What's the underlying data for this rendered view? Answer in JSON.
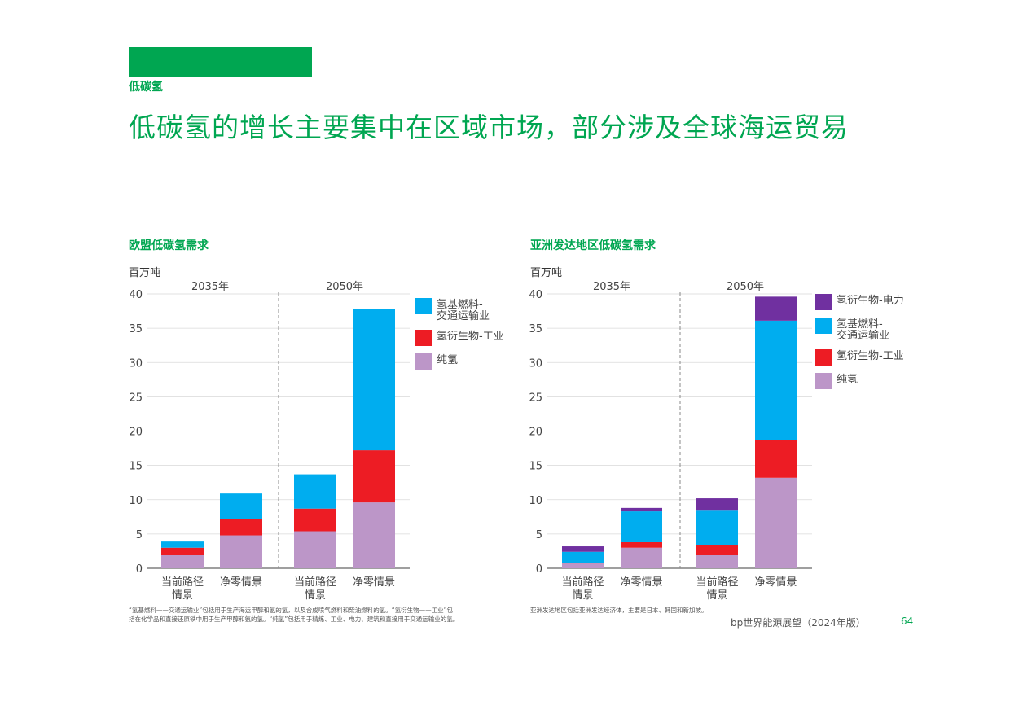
{
  "section_label": "低碳氢",
  "headline": "低碳氢的增长主要集中在区域市场，部分涉及全球海运贸易",
  "footer": {
    "brand": "bp世界能源展望（2024年版）",
    "page": "64"
  },
  "colors": {
    "accent": "#00a651",
    "pure_h2": "#bc96c8",
    "industry": "#ed1c24",
    "transport": "#00adef",
    "power": "#7030a0"
  },
  "chart_data": [
    {
      "type": "bar",
      "stacked": true,
      "title": "欧盟低碳氢需求",
      "ylabel": "百万吨",
      "ylim": [
        0,
        40
      ],
      "yticks": [
        0,
        5,
        10,
        15,
        20,
        25,
        30,
        35,
        40
      ],
      "groups": [
        "2035年",
        "2050年"
      ],
      "categories": [
        "当前路径\n情景",
        "净零情景",
        "当前路径\n情景",
        "净零情景"
      ],
      "series": [
        {
          "name": "纯氢",
          "color": "#bc96c8",
          "values": [
            1.9,
            4.8,
            5.4,
            9.6
          ]
        },
        {
          "name": "氢衍生物-工业",
          "color": "#ed1c24",
          "values": [
            1.1,
            2.4,
            3.3,
            7.6
          ]
        },
        {
          "name": "氢基燃料-\n交通运输业",
          "color": "#00adef",
          "values": [
            0.9,
            3.7,
            5.0,
            20.6
          ]
        }
      ],
      "footnote": "“氢基燃料——交通运输业”包括用于生产海运甲醇和氨的氢，以及合成喷气燃料和柴油燃料的氢。“氢衍生物——工业”包\n括在化学品和直接还原铁中用于生产甲醇和氨的氢。“纯氢”包括用于精炼、工业、电力、建筑和直接用于交通运输业的氢。"
    },
    {
      "type": "bar",
      "stacked": true,
      "title": "亚洲发达地区低碳氢需求",
      "ylabel": "百万吨",
      "ylim": [
        0,
        40
      ],
      "yticks": [
        0,
        5,
        10,
        15,
        20,
        25,
        30,
        35,
        40
      ],
      "groups": [
        "2035年",
        "2050年"
      ],
      "categories": [
        "当前路径\n情景",
        "净零情景",
        "当前路径\n情景",
        "净零情景"
      ],
      "series": [
        {
          "name": "纯氢",
          "color": "#bc96c8",
          "values": [
            0.7,
            3.0,
            1.9,
            13.2
          ]
        },
        {
          "name": "氢衍生物-工业",
          "color": "#ed1c24",
          "values": [
            0.1,
            0.8,
            1.5,
            5.5
          ]
        },
        {
          "name": "氢基燃料-\n交通运输业",
          "color": "#00adef",
          "values": [
            1.6,
            4.5,
            5.0,
            17.4
          ]
        },
        {
          "name": "氢衍生物-电力",
          "color": "#7030a0",
          "values": [
            0.8,
            0.5,
            1.8,
            3.5
          ]
        }
      ],
      "footnote": "亚洲发达地区包括亚洲发达经济体，主要是日本、韩国和新加坡。"
    }
  ]
}
